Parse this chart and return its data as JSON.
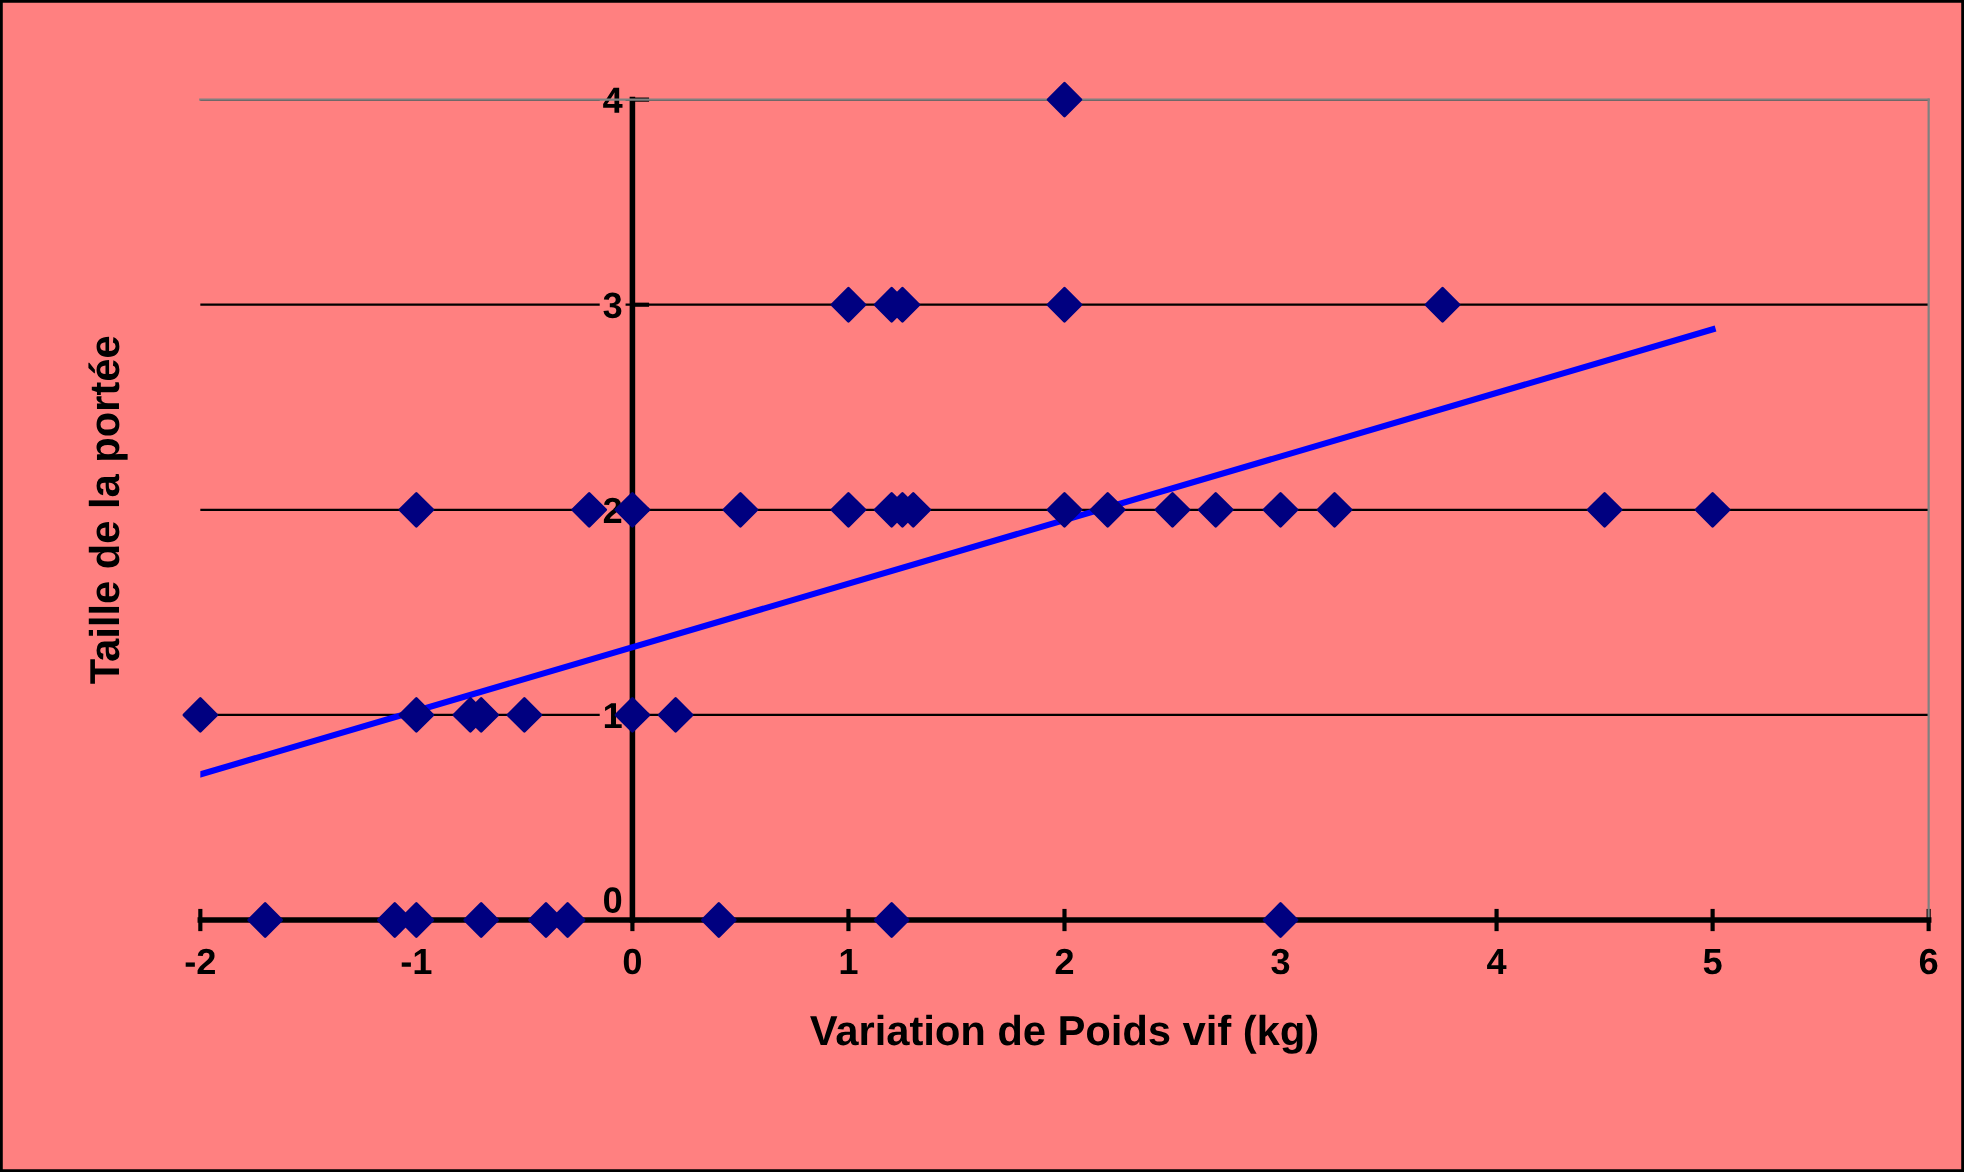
{
  "chart_data": {
    "type": "scatter",
    "xlabel": "Variation de Poids vif (kg)",
    "ylabel": "Taille de la portée",
    "series": [
      {
        "color": "#000080",
        "marker": "diamond",
        "x": [
          -1.7,
          -1.1,
          -1.0,
          -0.7,
          -0.4,
          -0.3,
          0.4,
          1.2,
          3.0,
          -2.0,
          -1.0,
          -0.75,
          -0.7,
          -0.5,
          0.0,
          0.2,
          -1.0,
          -0.2,
          0.0,
          0.5,
          1.0,
          1.2,
          1.25,
          1.3,
          2.0,
          2.2,
          2.5,
          2.7,
          3.0,
          3.25,
          4.5,
          5.0,
          1.0,
          1.2,
          1.25,
          2.0,
          3.75,
          2.0
        ],
        "values": [
          0,
          0,
          0,
          0,
          0,
          0,
          0,
          0,
          0,
          1,
          1,
          1,
          1,
          1,
          1,
          1,
          2,
          2,
          2,
          2,
          2,
          2,
          2,
          2,
          2,
          2,
          2,
          2,
          2,
          2,
          2,
          2,
          3,
          3,
          3,
          3,
          3,
          4
        ]
      },
      {
        "type": "line",
        "color": "#0000ff",
        "marker": "none",
        "line_style": "solid",
        "x": [
          -2,
          5
        ],
        "values": [
          0.71,
          2.88
        ]
      }
    ],
    "xlim": [
      -2,
      6
    ],
    "ylim": [
      0,
      4
    ],
    "xticks": [
      -2,
      -1,
      0,
      1,
      2,
      3,
      4,
      5,
      6
    ],
    "yticks": [
      0,
      1,
      2,
      3,
      4
    ],
    "grid": "y",
    "legend": false
  }
}
